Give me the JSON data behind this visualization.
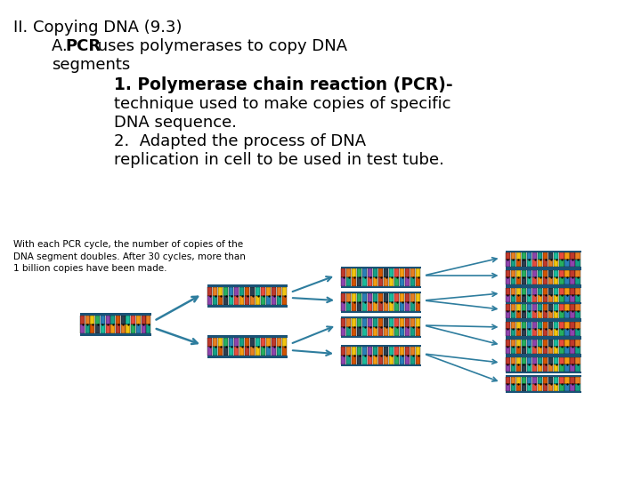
{
  "bg_color": "#ffffff",
  "title_line": "II. Copying DNA (9.3)",
  "line2_pre": "A. ",
  "line2_bold": "PCR",
  "line2_rest": " uses polymerases to copy DNA",
  "line3": "segments",
  "line4_bold": "1. Polymerase chain reaction (PCR)-",
  "line5": "technique used to make copies of specific",
  "line6": "DNA sequence.",
  "line7": "2.  Adapted the process of DNA",
  "line8": "replication in cell to be used in test tube.",
  "caption": "With each PCR cycle, the number of copies of the\nDNA segment doubles. After 30 cycles, more than\n1 billion copies have been made.",
  "arrow_color": "#2e7d9e",
  "dna_colors": [
    "#c0392b",
    "#e67e22",
    "#f1c40f",
    "#27ae60",
    "#2980b9",
    "#8e44ad",
    "#16a085",
    "#d35400",
    "#2c3e50",
    "#1abc9c",
    "#e74c3c",
    "#f39c12"
  ],
  "dna_rail_color": "#1a5276",
  "font_size_title": 13,
  "font_size_body": 13,
  "font_size_caption": 7.5
}
